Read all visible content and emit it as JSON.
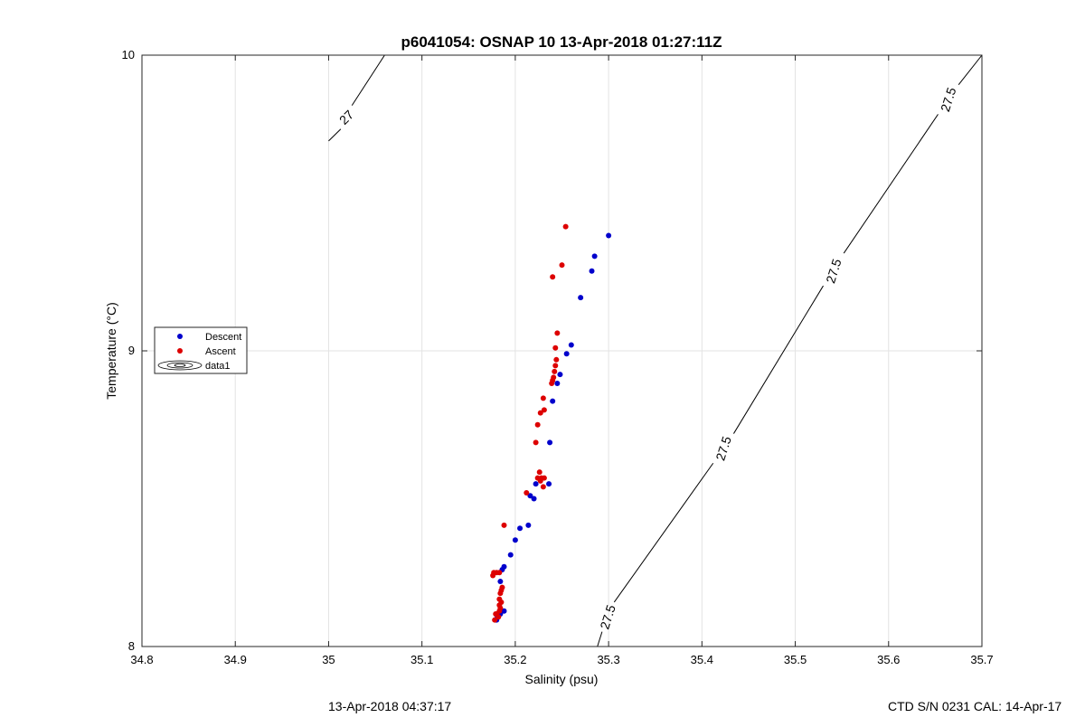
{
  "footer": {
    "left": "13-Apr-2018 04:37:17",
    "right": "CTD S/N 0231  CAL: 14-Apr-17"
  },
  "chart_data": {
    "type": "scatter",
    "title": "p6041054: OSNAP 10 13-Apr-2018 01:27:11Z",
    "xlabel": "Salinity (psu)",
    "ylabel": "Temperature (°C)",
    "xlim": [
      34.8,
      35.7
    ],
    "ylim": [
      8,
      10
    ],
    "xticks": [
      "34.8",
      "34.9",
      "35",
      "35.1",
      "35.2",
      "35.3",
      "35.4",
      "35.5",
      "35.6",
      "35.7"
    ],
    "yticks": [
      "8",
      "9",
      "10"
    ],
    "grid": true,
    "legend": {
      "placement": "left",
      "entries": [
        "Descent",
        "Ascent",
        "data1"
      ]
    },
    "colors": {
      "descent": "#0000cc",
      "ascent": "#dd0000",
      "contour": "#000000",
      "grid": "#e3e3e3"
    },
    "series": [
      {
        "name": "Descent",
        "points": [
          [
            35.3,
            9.39
          ],
          [
            35.285,
            9.32
          ],
          [
            35.282,
            9.27
          ],
          [
            35.27,
            9.18
          ],
          [
            35.26,
            9.02
          ],
          [
            35.255,
            8.99
          ],
          [
            35.248,
            8.92
          ],
          [
            35.245,
            8.89
          ],
          [
            35.24,
            8.83
          ],
          [
            35.237,
            8.69
          ],
          [
            35.236,
            8.55
          ],
          [
            35.222,
            8.55
          ],
          [
            35.22,
            8.5
          ],
          [
            35.216,
            8.51
          ],
          [
            35.214,
            8.41
          ],
          [
            35.205,
            8.4
          ],
          [
            35.2,
            8.36
          ],
          [
            35.195,
            8.31
          ],
          [
            35.188,
            8.27
          ],
          [
            35.186,
            8.26
          ],
          [
            35.184,
            8.22
          ],
          [
            35.188,
            8.12
          ],
          [
            35.184,
            8.11
          ],
          [
            35.181,
            8.1
          ],
          [
            35.18,
            8.09
          ],
          [
            35.179,
            8.09
          ]
        ]
      },
      {
        "name": "Ascent",
        "points": [
          [
            35.254,
            9.42
          ],
          [
            35.25,
            9.29
          ],
          [
            35.24,
            9.25
          ],
          [
            35.245,
            9.06
          ],
          [
            35.243,
            9.01
          ],
          [
            35.244,
            8.97
          ],
          [
            35.243,
            8.95
          ],
          [
            35.242,
            8.93
          ],
          [
            35.241,
            8.91
          ],
          [
            35.24,
            8.9
          ],
          [
            35.239,
            8.89
          ],
          [
            35.23,
            8.84
          ],
          [
            35.231,
            8.8
          ],
          [
            35.227,
            8.79
          ],
          [
            35.224,
            8.75
          ],
          [
            35.222,
            8.69
          ],
          [
            35.226,
            8.59
          ],
          [
            35.228,
            8.57
          ],
          [
            35.231,
            8.57
          ],
          [
            35.23,
            8.54
          ],
          [
            35.227,
            8.56
          ],
          [
            35.224,
            8.57
          ],
          [
            35.212,
            8.52
          ],
          [
            35.188,
            8.41
          ],
          [
            35.186,
            8.2
          ],
          [
            35.185,
            8.19
          ],
          [
            35.184,
            8.18
          ],
          [
            35.183,
            8.16
          ],
          [
            35.185,
            8.15
          ],
          [
            35.183,
            8.14
          ],
          [
            35.184,
            8.13
          ],
          [
            35.183,
            8.25
          ],
          [
            35.18,
            8.25
          ],
          [
            35.177,
            8.25
          ],
          [
            35.176,
            8.24
          ],
          [
            35.183,
            8.12
          ],
          [
            35.182,
            8.1
          ],
          [
            35.18,
            8.11
          ],
          [
            35.178,
            8.09
          ],
          [
            35.179,
            8.11
          ]
        ]
      }
    ],
    "contours": [
      {
        "label": "27",
        "segments": [
          [
            [
              35.0,
              9.71
            ],
            [
              35.013,
              9.75
            ]
          ],
          [
            [
              35.025,
              9.83
            ],
            [
              35.06,
              10.0
            ]
          ]
        ],
        "labels": [
          {
            "text": "27",
            "at": [
              35.019,
              9.79
            ]
          }
        ]
      },
      {
        "label": "27.5",
        "segments": [
          [
            [
              35.288,
              8.0
            ],
            [
              35.293,
              8.05
            ]
          ],
          [
            [
              35.306,
              8.15
            ],
            [
              35.412,
              8.62
            ]
          ],
          [
            [
              35.434,
              8.72
            ],
            [
              35.53,
              9.22
            ]
          ],
          [
            [
              35.552,
              9.33
            ],
            [
              35.653,
              9.8
            ]
          ],
          [
            [
              35.675,
              9.9
            ],
            [
              35.7,
              10.0
            ]
          ]
        ],
        "labels": [
          {
            "text": "27.5",
            "at": [
              35.299,
              8.1
            ]
          },
          {
            "text": "27.5",
            "at": [
              35.423,
              8.67
            ]
          },
          {
            "text": "27.5",
            "at": [
              35.541,
              9.27
            ]
          },
          {
            "text": "27.5",
            "at": [
              35.664,
              9.85
            ]
          }
        ]
      }
    ]
  }
}
